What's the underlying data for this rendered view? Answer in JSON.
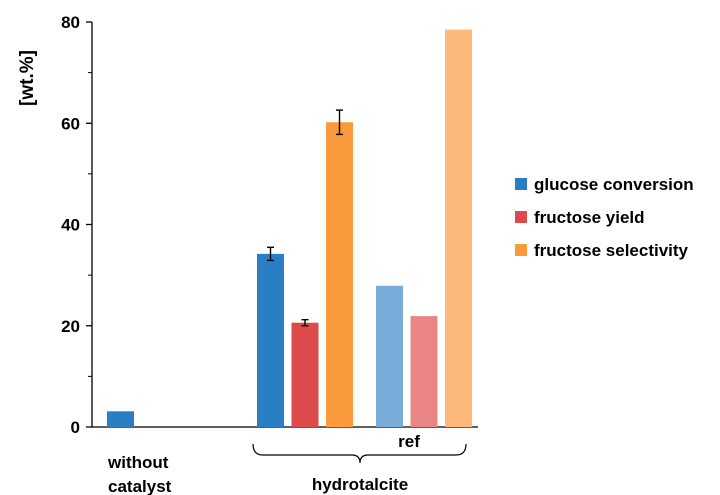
{
  "chart_data": {
    "type": "bar",
    "ylabel": "[wt.%]",
    "ylim": [
      0,
      80
    ],
    "y_ticks": [
      "0",
      "20",
      "40",
      "60",
      "80"
    ],
    "legend_position": "right",
    "grid": false,
    "series": [
      {
        "name": "glucose conversion",
        "color": "#2a7fc4"
      },
      {
        "name": "fructose yield",
        "color": "#db4b4b"
      },
      {
        "name": "fructose selectivity",
        "color": "#fb9a3c"
      }
    ],
    "groups": [
      {
        "label": "without\ncatalyst",
        "label_lines": [
          "without",
          "catalyst"
        ],
        "bars": [
          {
            "series": 0,
            "value": 3.1
          }
        ]
      },
      {
        "label": "",
        "bars": [
          {
            "series": 0,
            "value": 34.2,
            "error": 1.3
          },
          {
            "series": 1,
            "value": 20.6,
            "error": 0.6
          },
          {
            "series": 2,
            "value": 60.2,
            "error": 2.4
          }
        ]
      },
      {
        "label": "ref",
        "faded": true,
        "bars": [
          {
            "series": 0,
            "value": 27.9
          },
          {
            "series": 1,
            "value": 21.9
          },
          {
            "series": 2,
            "value": 78.5
          }
        ]
      }
    ],
    "bracket_label": "hydrotalcite"
  }
}
